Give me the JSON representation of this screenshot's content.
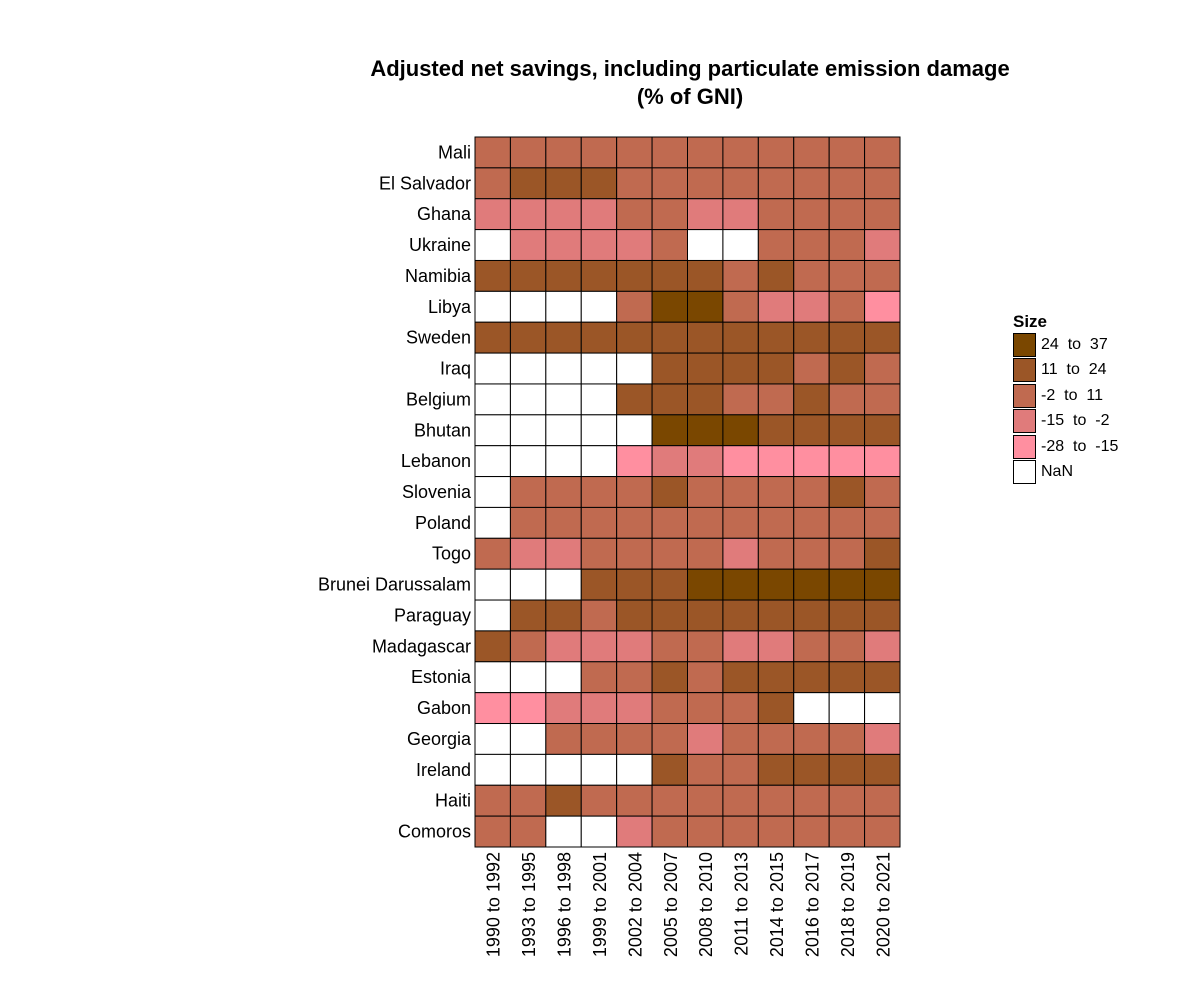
{
  "chart_data": {
    "type": "heatmap",
    "title": "Adjusted net savings, including particulate emission damage",
    "subtitle": "(% of GNI)",
    "xlabel": "",
    "ylabel": "",
    "categories_x": [
      "1990 to 1992",
      "1993 to 1995",
      "1996 to 1998",
      "1999 to 2001",
      "2002 to 2004",
      "2005 to 2007",
      "2008 to 2010",
      "2011 to 2013",
      "2014 to 2015",
      "2016 to 2017",
      "2018 to 2019",
      "2020 to 2021"
    ],
    "categories_y": [
      "Mali",
      "El Salvador",
      "Ghana",
      "Ukraine",
      "Namibia",
      "Libya",
      "Sweden",
      "Iraq",
      "Belgium",
      "Bhutan",
      "Lebanon",
      "Slovenia",
      "Poland",
      "Togo",
      "Brunei Darussalam",
      "Paraguay",
      "Madagascar",
      "Estonia",
      "Gabon",
      "Georgia",
      "Ireland",
      "Haiti",
      "Comoros"
    ],
    "legend": {
      "title": "Size",
      "placement": "right",
      "bins": [
        {
          "label": "24  to  37",
          "color": "#7a4700"
        },
        {
          "label": "11  to  24",
          "color": "#9b5627"
        },
        {
          "label": "-2  to  11",
          "color": "#c06a50"
        },
        {
          "label": "-15  to  -2",
          "color": "#e07b7b"
        },
        {
          "label": "-28  to  -15",
          "color": "#ff8fa0"
        },
        {
          "label": "NaN",
          "color": "#ffffff"
        }
      ]
    },
    "cells": [
      [
        2,
        2,
        2,
        2,
        2,
        2,
        2,
        2,
        2,
        2,
        2,
        2
      ],
      [
        2,
        1,
        1,
        1,
        2,
        2,
        2,
        2,
        2,
        2,
        2,
        2
      ],
      [
        3,
        3,
        3,
        3,
        2,
        2,
        3,
        3,
        2,
        2,
        2,
        2
      ],
      [
        5,
        3,
        3,
        3,
        3,
        2,
        5,
        5,
        2,
        2,
        2,
        3
      ],
      [
        1,
        1,
        1,
        1,
        1,
        1,
        1,
        2,
        1,
        2,
        2,
        2
      ],
      [
        5,
        5,
        5,
        5,
        2,
        0,
        0,
        2,
        3,
        3,
        2,
        4
      ],
      [
        1,
        1,
        1,
        1,
        1,
        1,
        1,
        1,
        1,
        1,
        1,
        1
      ],
      [
        5,
        5,
        5,
        5,
        5,
        1,
        1,
        1,
        1,
        2,
        1,
        2
      ],
      [
        5,
        5,
        5,
        5,
        1,
        1,
        1,
        2,
        2,
        1,
        2,
        2
      ],
      [
        5,
        5,
        5,
        5,
        5,
        0,
        0,
        0,
        1,
        1,
        1,
        1
      ],
      [
        5,
        5,
        5,
        5,
        4,
        3,
        3,
        4,
        4,
        4,
        4,
        4
      ],
      [
        5,
        2,
        2,
        2,
        2,
        1,
        2,
        2,
        2,
        2,
        1,
        2
      ],
      [
        5,
        2,
        2,
        2,
        2,
        2,
        2,
        2,
        2,
        2,
        2,
        2
      ],
      [
        2,
        3,
        3,
        2,
        2,
        2,
        2,
        3,
        2,
        2,
        2,
        1
      ],
      [
        5,
        5,
        5,
        1,
        1,
        1,
        0,
        0,
        0,
        0,
        0,
        0
      ],
      [
        5,
        1,
        1,
        2,
        1,
        1,
        1,
        1,
        1,
        1,
        1,
        1
      ],
      [
        1,
        2,
        3,
        3,
        3,
        2,
        2,
        3,
        3,
        2,
        2,
        3
      ],
      [
        5,
        5,
        5,
        2,
        2,
        1,
        2,
        1,
        1,
        1,
        1,
        1
      ],
      [
        4,
        4,
        3,
        3,
        3,
        2,
        2,
        2,
        1,
        5,
        5,
        5
      ],
      [
        5,
        5,
        2,
        2,
        2,
        2,
        3,
        2,
        2,
        2,
        2,
        3
      ],
      [
        5,
        5,
        5,
        5,
        5,
        1,
        2,
        2,
        1,
        1,
        1,
        1
      ],
      [
        2,
        2,
        1,
        2,
        2,
        2,
        2,
        2,
        2,
        2,
        2,
        2
      ],
      [
        2,
        2,
        5,
        5,
        3,
        2,
        2,
        2,
        2,
        2,
        2,
        2
      ]
    ]
  }
}
